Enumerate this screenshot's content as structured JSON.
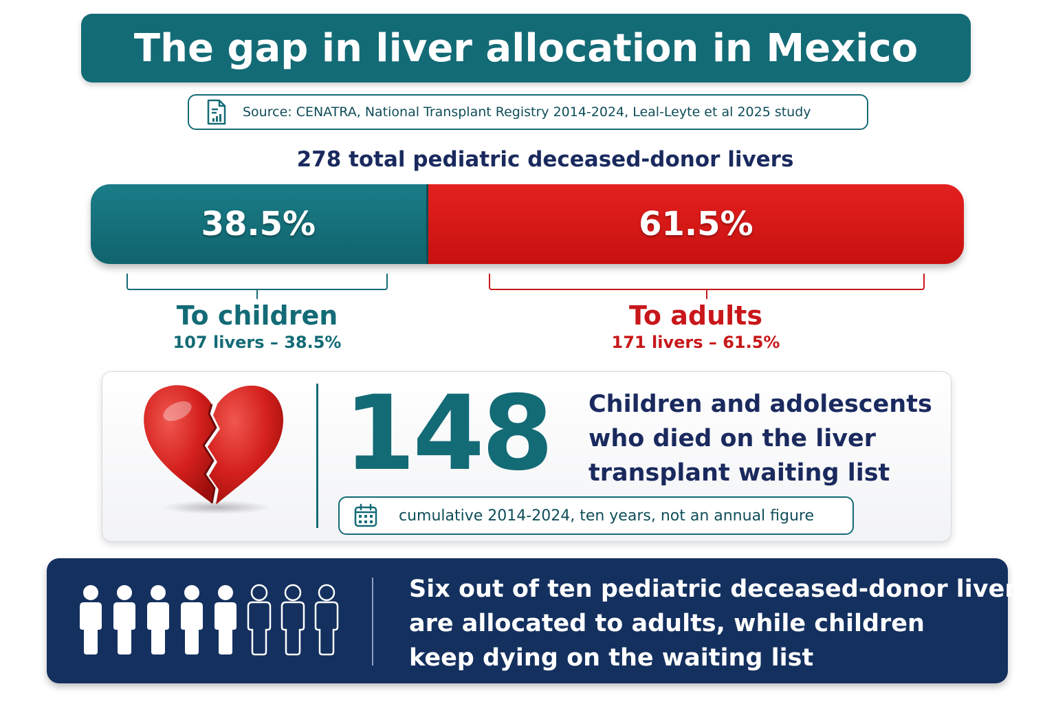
{
  "title": "The gap in liver allocation in Mexico",
  "source": {
    "icon": "document-chart-icon",
    "text": "Source: CENATRA, National Transplant Registry 2014-2024, Leal-Leyte et al 2025 study"
  },
  "total_label": "278 total pediatric deceased-donor livers",
  "split": {
    "children": {
      "fraction": 0.385,
      "percent_label": "38.5%",
      "title": "To children",
      "detail": "107 livers – 38.5%",
      "color": "#136b76"
    },
    "adults": {
      "fraction": 0.615,
      "percent_label": "61.5%",
      "title": "To adults",
      "detail": "171 livers – 61.5%",
      "color": "#c8171a"
    }
  },
  "deaths": {
    "icon": "broken-heart-icon",
    "number": "148",
    "description_lines": [
      "Children and adolescents",
      "who died on the liver",
      "transplant waiting list"
    ],
    "note_icon": "calendar-icon",
    "note": "cumulative 2014-2024, ten years, not an annual figure"
  },
  "bottom": {
    "icon": "people-icon",
    "people_total": 8,
    "people_filled": 5,
    "message_lines": [
      "Six out of ten pediatric deceased-donor livers",
      "are allocated to adults, while children",
      "keep dying on the waiting list"
    ]
  }
}
